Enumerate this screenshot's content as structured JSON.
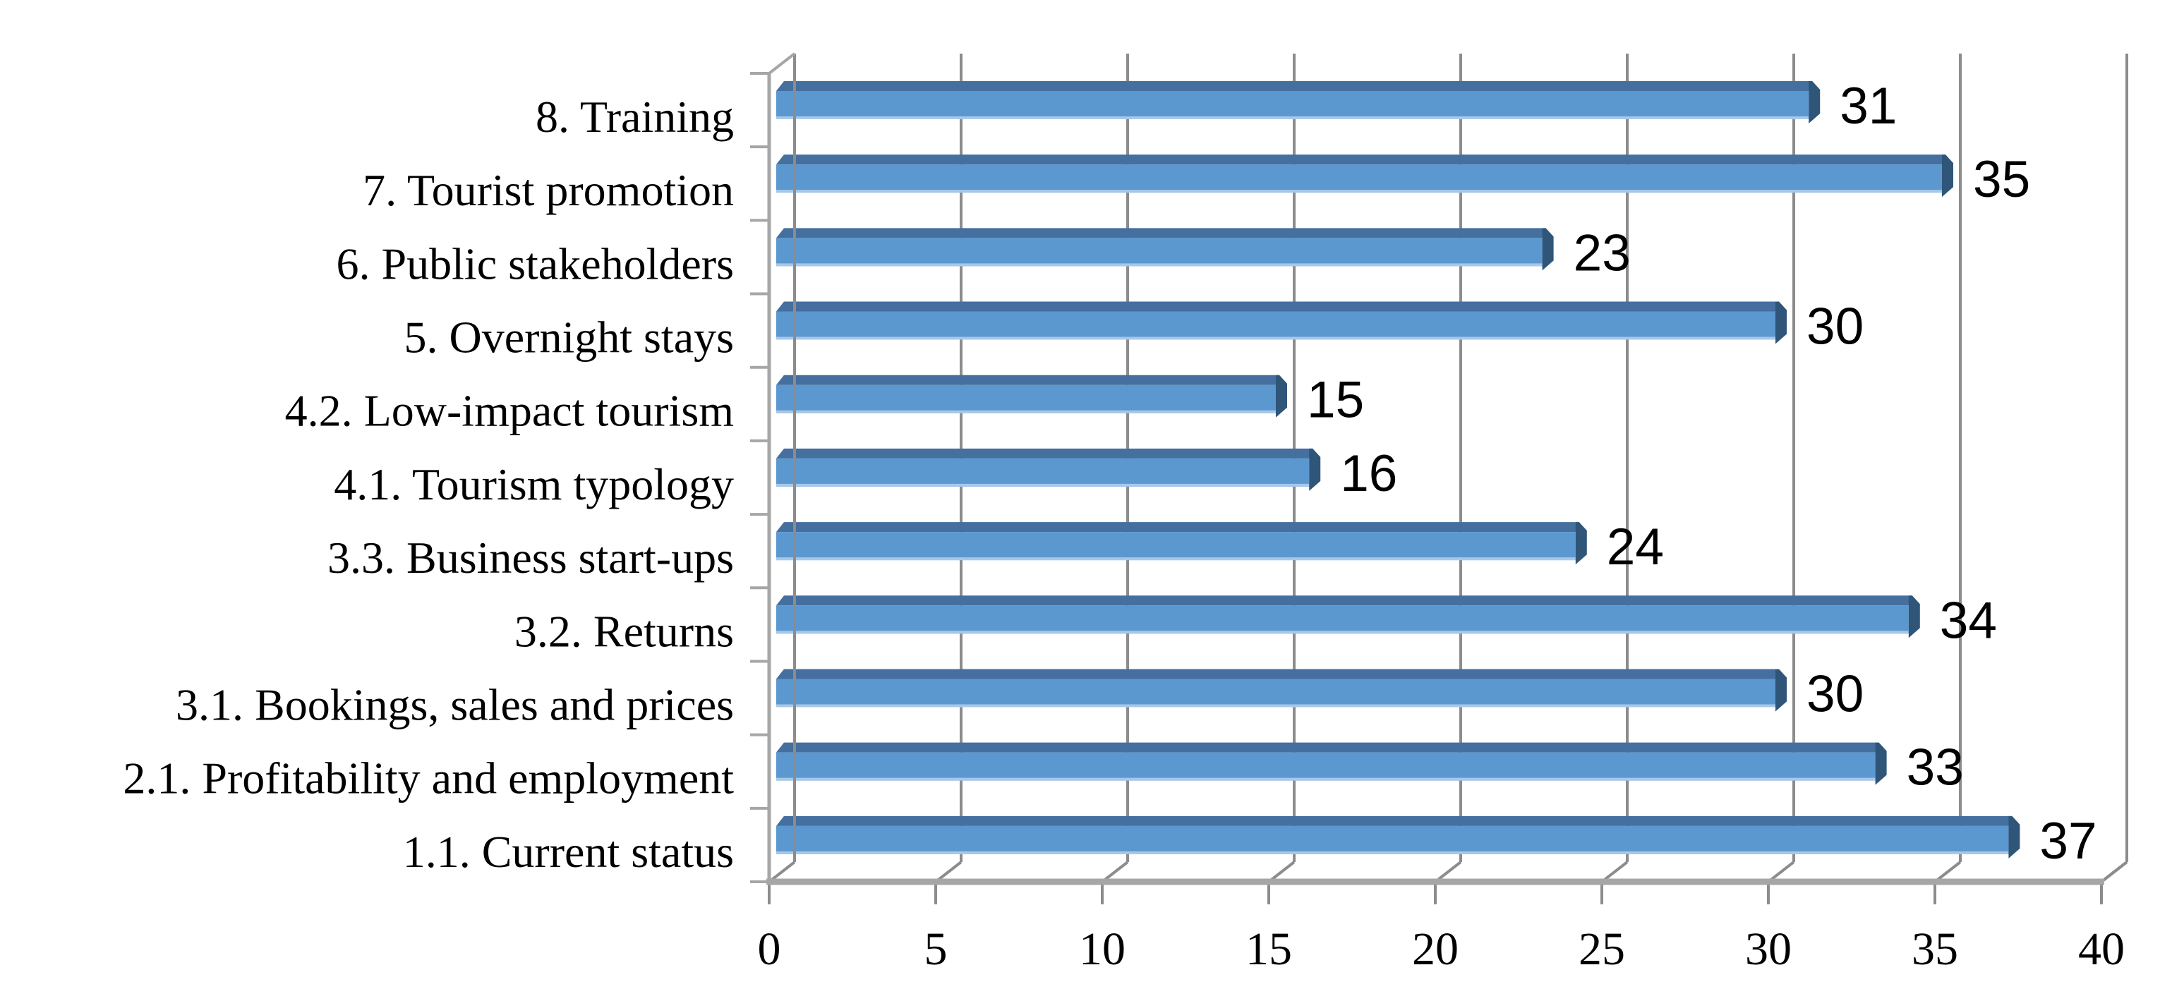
{
  "chart_data": {
    "type": "bar",
    "orientation": "horizontal",
    "style": "3d",
    "title": "",
    "xlabel": "",
    "ylabel": "",
    "categories": [
      "8. Training",
      "7. Tourist promotion",
      "6. Public stakeholders",
      "5. Overnight stays",
      "4.2. Low-impact tourism",
      "4.1. Tourism typology",
      "3.3. Business start-ups",
      "3.2. Returns",
      "3.1. Bookings, sales and prices",
      "2.1. Profitability and employment",
      "1.1. Current status"
    ],
    "values": [
      31,
      35,
      23,
      30,
      15,
      16,
      24,
      34,
      30,
      33,
      37
    ],
    "data_labels": [
      "31",
      "35",
      "23",
      "30",
      "15",
      "16",
      "24",
      "34",
      "30",
      "33",
      "37"
    ],
    "xlim": [
      0,
      40
    ],
    "xticks": [
      "0",
      "5",
      "10",
      "15",
      "20",
      "25",
      "30",
      "35",
      "40"
    ],
    "xtick_step": 5,
    "grid": true,
    "legend": false,
    "colors": {
      "bar_face": "#5B98D0",
      "bar_top": "#456F9F",
      "bar_end": "#2F5679",
      "bar_bottom_edge": "#A8C8E8",
      "gridline": "#8C8C8C",
      "frame": "#A6A6A6",
      "text": "#000000",
      "background": "#FFFFFF"
    }
  }
}
